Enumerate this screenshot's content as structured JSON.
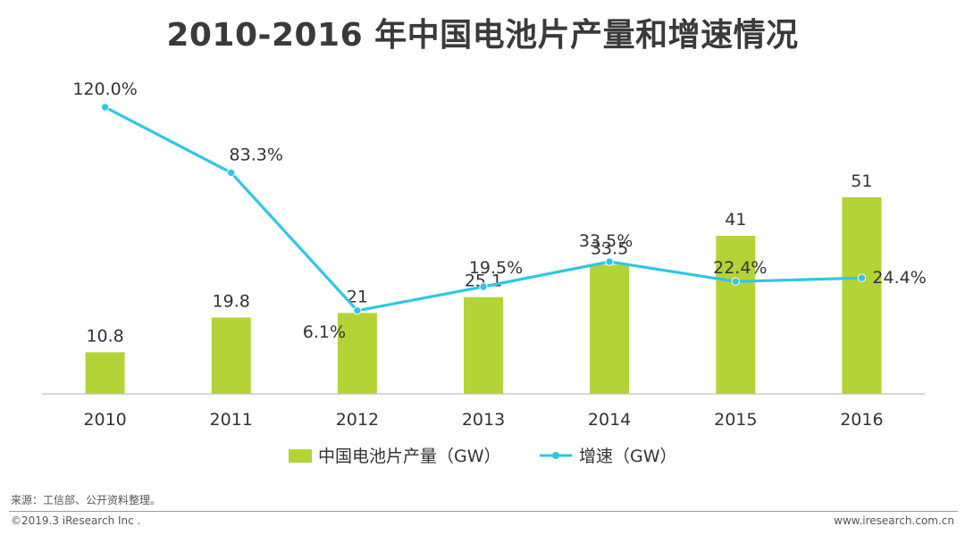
{
  "chart_data": {
    "type": "bar+line",
    "title": "2010-2016 年中国电池片产量和增速情况",
    "categories": [
      "2010",
      "2011",
      "2012",
      "2013",
      "2014",
      "2015",
      "2016"
    ],
    "series": [
      {
        "name": "中国电池片产量（GW）",
        "type": "bar",
        "values": [
          10.8,
          19.8,
          21,
          25.1,
          33.5,
          41,
          51
        ],
        "labels": [
          "10.8",
          "19.8",
          "21",
          "25.1",
          "33.5",
          "41",
          "51"
        ],
        "color": "#b3d336"
      },
      {
        "name": "增速（GW）",
        "type": "line",
        "values": [
          120.0,
          83.3,
          6.1,
          19.5,
          33.5,
          22.4,
          24.4
        ],
        "labels": [
          "120.0%",
          "83.3%",
          "6.1%",
          "19.5%",
          "33.5%",
          "22.4%",
          "24.4%"
        ],
        "color": "#2ec7e6"
      }
    ],
    "bar_ylim": [
      0,
      60
    ],
    "line_ylim": [
      -100,
      130
    ],
    "grid": false,
    "legend_position": "bottom-center"
  },
  "footer": {
    "source": "来源：工信部、公开资料整理。",
    "copyright": "©2019.3 iResearch Inc .",
    "website": "www.iresearch.com.cn"
  }
}
